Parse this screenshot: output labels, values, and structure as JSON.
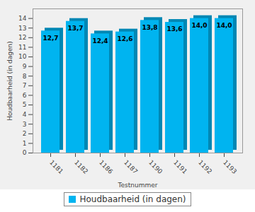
{
  "chart_data": {
    "type": "bar",
    "categories": [
      "1181",
      "1182",
      "1186",
      "1187",
      "1190",
      "1191",
      "1192",
      "1193"
    ],
    "series": [
      {
        "name": "Houdbaarheid (in dagen)",
        "color": "#00b4f0",
        "values": [
          12.7,
          13.7,
          12.4,
          12.6,
          13.8,
          13.6,
          14.0,
          14.0
        ],
        "value_labels": [
          "12,7",
          "13,7",
          "12,4",
          "12,6",
          "13,8",
          "13,6",
          "14,0",
          "14,0"
        ]
      }
    ],
    "x_label": "Testnummer",
    "y_label": "Houdbaarheid (in dagen)",
    "ylim": [
      0,
      15
    ],
    "yticks": [
      0,
      1,
      2,
      3,
      4,
      5,
      6,
      7,
      8,
      9,
      10,
      11,
      12,
      13,
      14
    ],
    "grid": false,
    "data_labels": true,
    "legend": "bottom"
  }
}
